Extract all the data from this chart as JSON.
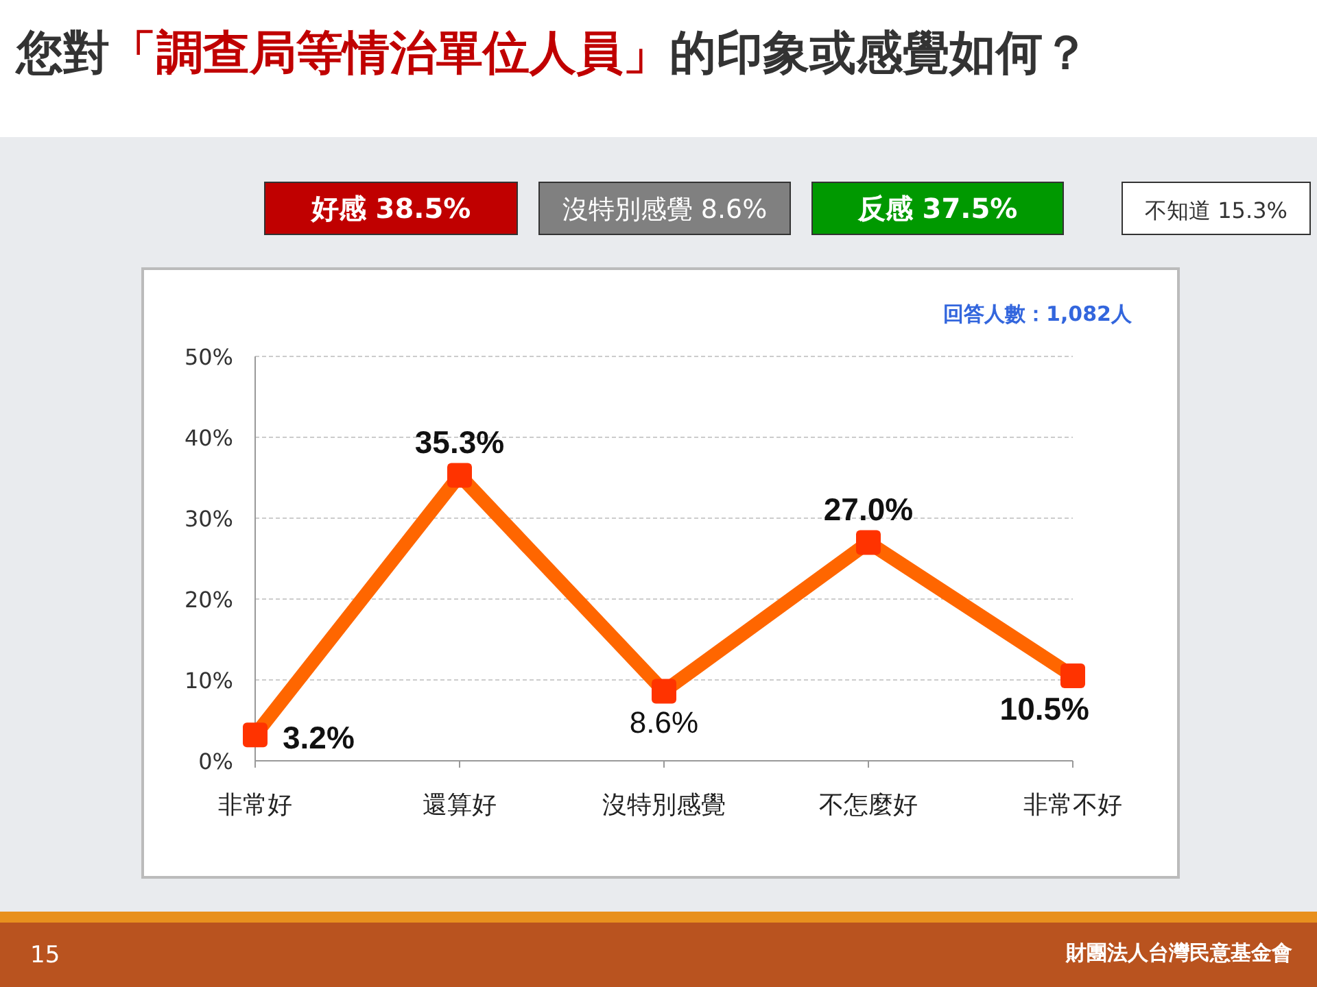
{
  "chart_data": {
    "type": "line",
    "title": "您對「調查局等情治單位人員」的印象或感覺如何？",
    "categories": [
      "非常好",
      "還算好",
      "沒特別感覺",
      "不怎麼好",
      "非常不好"
    ],
    "series": [
      {
        "color": "#ff6600",
        "values": [
          3.2,
          35.3,
          8.6,
          27.0,
          10.5
        ],
        "value_labels": [
          "3.2%",
          "35.3%",
          "8.6%",
          "27.0%",
          "10.5%"
        ]
      }
    ],
    "ylim": [
      0,
      50
    ],
    "yticks": [
      {
        "value": 0,
        "label": "0%"
      },
      {
        "value": 10,
        "label": "10%"
      },
      {
        "value": 20,
        "label": "20%"
      },
      {
        "value": 30,
        "label": "30%"
      },
      {
        "value": 40,
        "label": "40%"
      },
      {
        "value": 50,
        "label": "50%"
      }
    ],
    "grid": "y",
    "marker": "square",
    "line_style": "solid",
    "annotations": [
      "好感 38.5%",
      "沒特別感覺 8.6%",
      "反感 37.5%",
      "不知道 15.3%",
      "回答人數：1,082人",
      "15",
      "財團法人台灣民意基金會"
    ]
  }
}
